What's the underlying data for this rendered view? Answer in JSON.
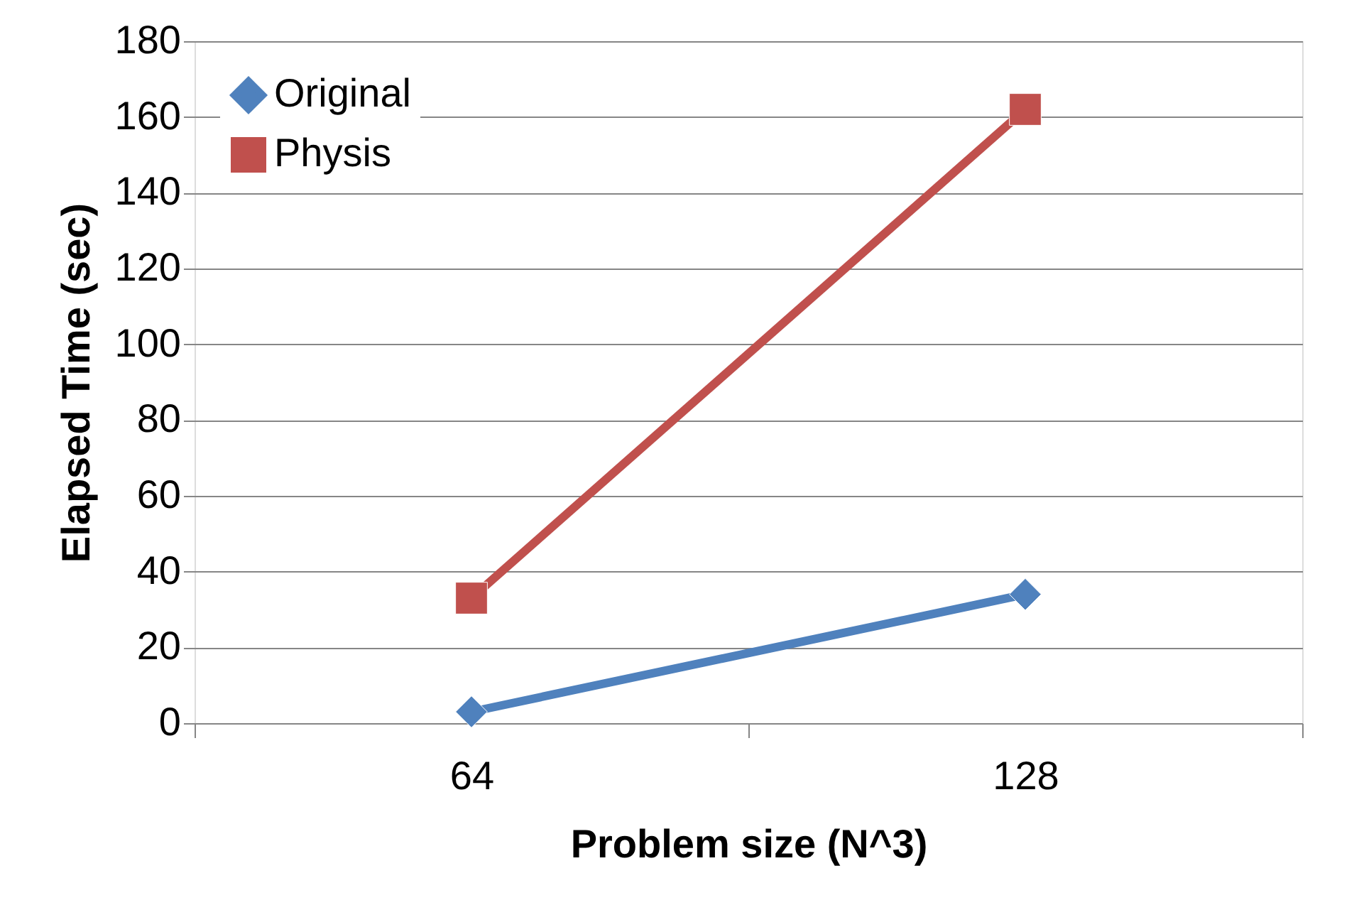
{
  "chart_data": {
    "type": "line",
    "xlabel": "Problem size (N^3)",
    "ylabel": "Elapsed Time (sec)",
    "categories": [
      "64",
      "128"
    ],
    "series": [
      {
        "name": "Original",
        "color": "#4f81bd",
        "marker": "diamond",
        "values": [
          3,
          34
        ]
      },
      {
        "name": "Physis",
        "color": "#c0504d",
        "marker": "square",
        "values": [
          33,
          162
        ]
      }
    ],
    "ylim": [
      0,
      180
    ],
    "yticks": [
      0,
      20,
      40,
      60,
      80,
      100,
      120,
      140,
      160,
      180
    ],
    "grid": "y",
    "legend": "top left"
  }
}
